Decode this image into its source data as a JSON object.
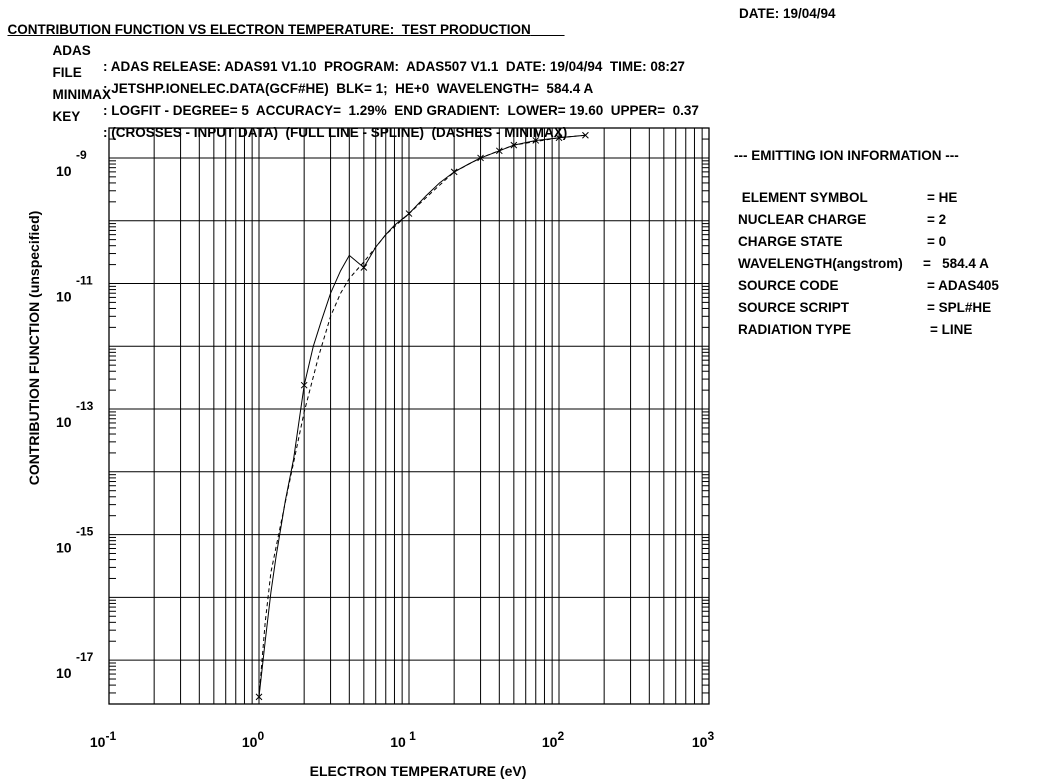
{
  "header": {
    "title": "CONTRIBUTION FUNCTION VS ELECTRON TEMPERATURE:  TEST PRODUCTION",
    "date": "DATE: 19/04/94",
    "lines": [
      {
        "label": "ADAS",
        "text": ": ADAS RELEASE: ADAS91 V1.10  PROGRAM:  ADAS507 V1.1  DATE: 19/04/94  TIME: 08:27"
      },
      {
        "label": "FILE",
        "text": ": JETSHP.IONELEC.DATA(GCF#HE)  BLK= 1;  HE+0  WAVELENGTH=  584.4 A"
      },
      {
        "label": "MINIMAX",
        "text": ": LOGFIT - DEGREE= 5  ACCURACY=  1.29%  END GRADIENT:  LOWER= 19.60  UPPER=  0.37"
      },
      {
        "label": "KEY",
        "text": ": (CROSSES - INPUT DATA)  (FULL LINE - SPLINE)  (DASHES - MINIMAX)"
      }
    ]
  },
  "info_panel": {
    "heading": "--- EMITTING ION INFORMATION ---",
    "rows": [
      {
        "key": " ELEMENT SYMBOL",
        "value": "= HE"
      },
      {
        "key": "NUCLEAR CHARGE",
        "value": "= 2"
      },
      {
        "key": "CHARGE STATE",
        "value": "= 0"
      },
      {
        "key": "WAVELENGTH(angstrom)",
        "value": "=   584.4 A"
      },
      {
        "key": "SOURCE CODE",
        "value": "= ADAS405"
      },
      {
        "key": "SOURCE SCRIPT",
        "value": "= SPL#HE"
      },
      {
        "key": "RADIATION TYPE",
        "value": "= LINE"
      }
    ]
  },
  "chart_data": {
    "type": "line",
    "xlabel": "ELECTRON TEMPERATURE (eV)",
    "ylabel": "CONTRIBUTION FUNCTION   (unspecified)",
    "x_scale": "log",
    "y_scale": "log",
    "xlim": [
      0.1,
      1000
    ],
    "ylim": [
      2e-18,
      3e-09
    ],
    "grid": true,
    "x_ticks": [
      {
        "base": "10",
        "exp": "-1",
        "value": 0.1
      },
      {
        "base": "10",
        "exp": "0",
        "value": 1
      },
      {
        "base": "10",
        "exp": " 1",
        "value": 10
      },
      {
        "base": "10",
        "exp": "2",
        "value": 100
      },
      {
        "base": "10",
        "exp": "3",
        "value": 1000
      }
    ],
    "y_ticks": [
      {
        "base": "10",
        "exp": "-9",
        "value": 1e-09
      },
      {
        "base": "10",
        "exp": "-11",
        "value": 1e-11
      },
      {
        "base": "10",
        "exp": "-13",
        "value": 1e-13
      },
      {
        "base": "10",
        "exp": "-15",
        "value": 1e-15
      },
      {
        "base": "10",
        "exp": "-17",
        "value": 1e-17
      }
    ],
    "series": [
      {
        "name": "INPUT DATA",
        "style": "crosses",
        "x": [
          1,
          2,
          5,
          10,
          20,
          30,
          40,
          50,
          70,
          100,
          150
        ],
        "y": [
          2.6e-18,
          2.4e-13,
          1.8e-11,
          1.3e-10,
          6e-10,
          1e-09,
          1.3e-09,
          1.6e-09,
          1.9e-09,
          2.1e-09,
          2.3e-09
        ]
      },
      {
        "name": "SPLINE",
        "style": "solid",
        "x": [
          1,
          1.1,
          1.2,
          1.3,
          1.5,
          1.7,
          2,
          2.3,
          2.6,
          3,
          3.5,
          4,
          5,
          6,
          7,
          8,
          10,
          13,
          16,
          20,
          25,
          30,
          40,
          50,
          70,
          100,
          150
        ],
        "y": [
          2.6e-18,
          2e-17,
          1.2e-16,
          4.5e-16,
          3.5e-15,
          1.6e-14,
          2.4e-13,
          1e-12,
          2.5e-12,
          7e-12,
          1.6e-11,
          2.8e-11,
          1.8e-11,
          3.8e-11,
          6e-11,
          8.5e-11,
          1.3e-10,
          2.5e-10,
          4e-10,
          6e-10,
          8e-10,
          1e-09,
          1.3e-09,
          1.6e-09,
          1.9e-09,
          2.1e-09,
          2.3e-09
        ]
      },
      {
        "name": "MINIMAX",
        "style": "dashed",
        "x": [
          1,
          1.1,
          1.2,
          1.4,
          1.6,
          2,
          2.5,
          3,
          3.5,
          4,
          5,
          7,
          10,
          15,
          20,
          30,
          50,
          100,
          150
        ],
        "y": [
          2.6e-18,
          4e-17,
          2.5e-16,
          1.5e-15,
          7e-15,
          9e-14,
          7e-13,
          3e-12,
          7e-12,
          1.2e-11,
          2.2e-11,
          6e-11,
          1.3e-10,
          3.2e-10,
          6e-10,
          1e-09,
          1.6e-09,
          2.1e-09,
          2.3e-09
        ]
      }
    ]
  }
}
